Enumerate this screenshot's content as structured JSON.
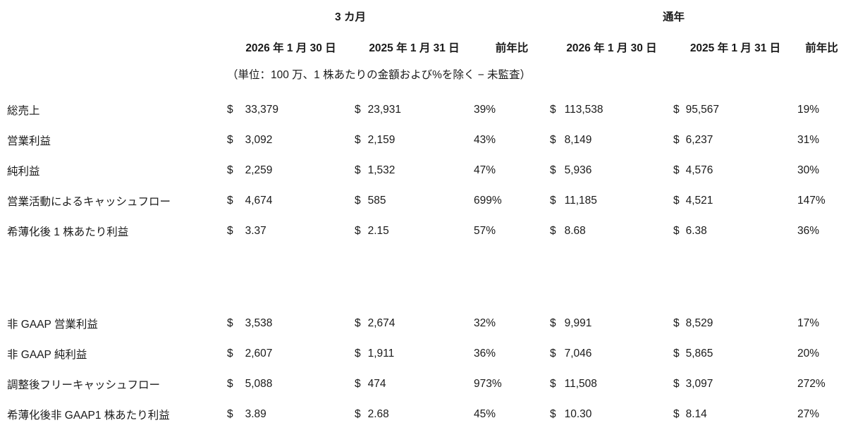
{
  "table": {
    "currency_symbol": "$",
    "group_headers": [
      {
        "label": "3 カ月"
      },
      {
        "label": "通年"
      }
    ],
    "column_headers": {
      "q_date_current": "2026 年 1 月 30 日",
      "q_date_prior": "2025 年 1 月 31 日",
      "q_yoy": "前年比",
      "fy_date_current": "2026 年 1 月 30 日",
      "fy_date_prior": "2025 年 1 月 31 日",
      "fy_yoy": "前年比"
    },
    "unit_note": "（単位：100 万、1 株あたりの金額および%を除く − 未監査）",
    "sections": [
      {
        "rows": [
          {
            "label": "総売上",
            "q1": "33,379",
            "q2": "23,931",
            "q_yoy": "39%",
            "fy1": "113,538",
            "fy2": "95,567",
            "fy_yoy": "19%"
          },
          {
            "label": "営業利益",
            "q1": "3,092",
            "q2": "2,159",
            "q_yoy": "43%",
            "fy1": "8,149",
            "fy2": "6,237",
            "fy_yoy": "31%"
          },
          {
            "label": "純利益",
            "q1": "2,259",
            "q2": "1,532",
            "q_yoy": "47%",
            "fy1": "5,936",
            "fy2": "4,576",
            "fy_yoy": "30%"
          },
          {
            "label": "営業活動によるキャッシュフロー",
            "q1": "4,674",
            "q2": "585",
            "q_yoy": "699%",
            "fy1": "11,185",
            "fy2": "4,521",
            "fy_yoy": "147%"
          },
          {
            "label": "希薄化後 1 株あたり利益",
            "q1": "3.37",
            "q2": "2.15",
            "q_yoy": "57%",
            "fy1": "8.68",
            "fy2": "6.38",
            "fy_yoy": "36%"
          }
        ]
      },
      {
        "rows": [
          {
            "label": "非 GAAP 営業利益",
            "q1": "3,538",
            "q2": "2,674",
            "q_yoy": "32%",
            "fy1": "9,991",
            "fy2": "8,529",
            "fy_yoy": "17%"
          },
          {
            "label": "非 GAAP 純利益",
            "q1": "2,607",
            "q2": "1,911",
            "q_yoy": "36%",
            "fy1": "7,046",
            "fy2": "5,865",
            "fy_yoy": "20%"
          },
          {
            "label": "調整後フリーキャッシュフロー",
            "q1": "5,088",
            "q2": "474",
            "q_yoy": "973%",
            "fy1": "11,508",
            "fy2": "3,097",
            "fy_yoy": "272%"
          },
          {
            "label": "希薄化後非 GAAP1 株あたり利益",
            "q1": "3.89",
            "q2": "2.68",
            "q_yoy": "45%",
            "fy1": "10.30",
            "fy2": "8.14",
            "fy_yoy": "27%"
          }
        ]
      }
    ]
  }
}
